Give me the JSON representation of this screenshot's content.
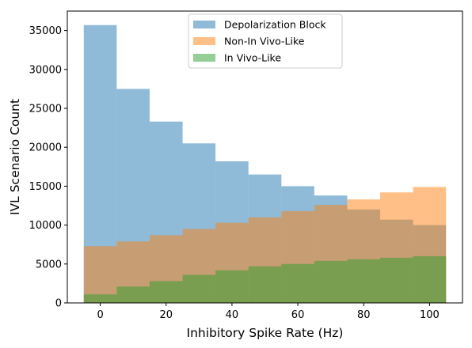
{
  "chart_data": {
    "type": "bar",
    "subtype": "overlapping-histogram",
    "title": "",
    "xlabel": "Inhibitory Spike Rate (Hz)",
    "ylabel": "IVL Scenario Count",
    "xlim": [
      -10,
      110
    ],
    "ylim": [
      0,
      37500
    ],
    "bin_edges": [
      -5,
      5,
      15,
      25,
      35,
      45,
      55,
      65,
      75,
      85,
      95,
      105
    ],
    "x_ticks": [
      0,
      20,
      40,
      60,
      80,
      100
    ],
    "x_tick_labels": [
      "0",
      "20",
      "40",
      "60",
      "80",
      "100"
    ],
    "y_ticks": [
      0,
      5000,
      10000,
      15000,
      20000,
      25000,
      30000,
      35000
    ],
    "y_tick_labels": [
      "0",
      "5000",
      "10000",
      "15000",
      "20000",
      "25000",
      "30000",
      "35000"
    ],
    "legend_position": "upper-center",
    "series": [
      {
        "name": "Depolarization Block",
        "color": "#1f77b4",
        "alpha": 0.5,
        "values": [
          35700,
          27500,
          23300,
          20500,
          18200,
          16500,
          15000,
          13800,
          12000,
          10700,
          10000
        ]
      },
      {
        "name": "Non-In Vivo-Like",
        "color": "#ff7f0e",
        "alpha": 0.5,
        "values": [
          7300,
          7900,
          8700,
          9500,
          10300,
          11000,
          11800,
          12600,
          13300,
          14200,
          14900
        ]
      },
      {
        "name": "In Vivo-Like",
        "color": "#2ca02c",
        "alpha": 0.5,
        "values": [
          1100,
          2100,
          2800,
          3600,
          4200,
          4700,
          5000,
          5400,
          5600,
          5800,
          6000
        ]
      }
    ]
  }
}
